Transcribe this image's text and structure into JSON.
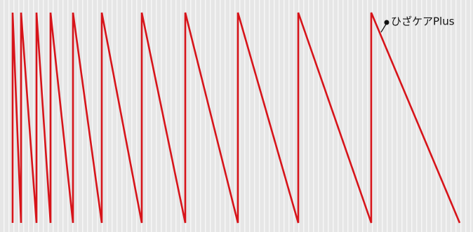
{
  "chart_data": {
    "type": "line",
    "annotation": "ひざケアPlus",
    "x": [
      18,
      18,
      30,
      30,
      52,
      52,
      72,
      72,
      104,
      104,
      145,
      145,
      202,
      202,
      264,
      264,
      339,
      339,
      425,
      425,
      529,
      529,
      655
    ],
    "values": [
      0,
      100,
      0,
      100,
      0,
      100,
      0,
      100,
      0,
      100,
      0,
      100,
      0,
      100,
      0,
      100,
      0,
      100,
      0,
      100,
      0,
      100,
      0
    ],
    "color": "#d7141a",
    "xlim": [
      0,
      674
    ],
    "ylim": [
      0,
      100
    ]
  }
}
